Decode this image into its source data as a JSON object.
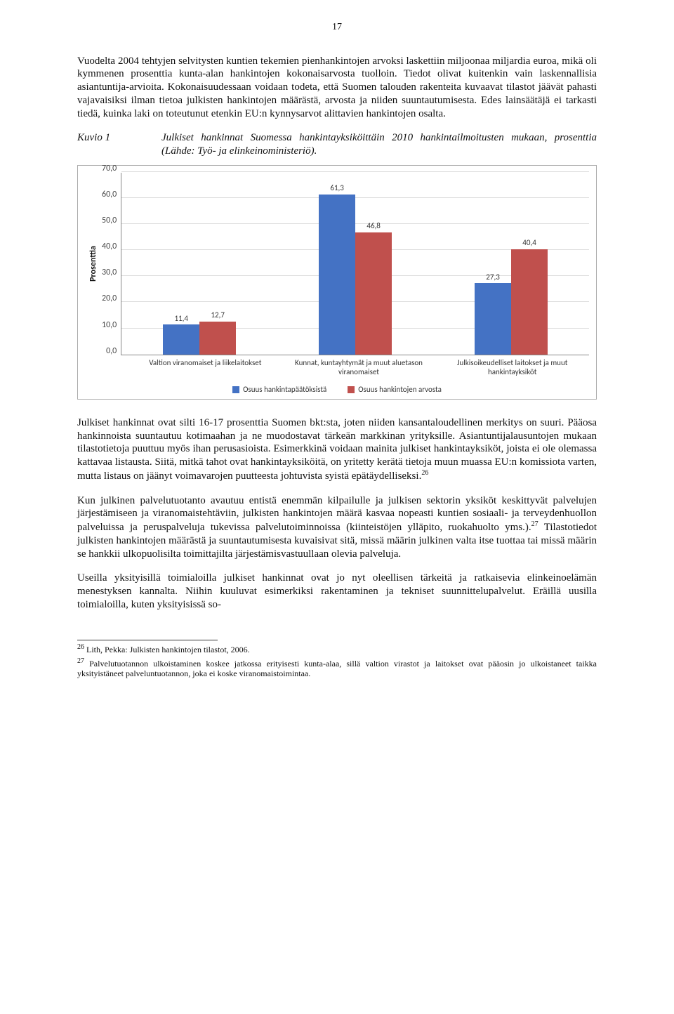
{
  "page_number": "17",
  "para1": "Vuodelta 2004 tehtyjen selvitysten kuntien tekemien pienhankintojen arvoksi laskettiin miljoonaa miljardia euroa, mikä oli kymmenen prosenttia kunta-alan hankintojen kokonaisarvosta tuolloin. Tiedot olivat kuitenkin vain laskennallisia asiantuntija-arvioita. Kokonaisuudessaan voidaan todeta, että Suomen talouden rakenteita kuvaavat tilastot jäävät pahasti vajavaisiksi ilman tietoa julkisten hankintojen määrästä, arvosta ja niiden suuntautumisesta. Edes lainsäätäjä ei tarkasti tiedä, kuinka laki on toteutunut etenkin EU:n kynnysarvot alittavien hankintojen osalta.",
  "kuvio": {
    "label": "Kuvio 1",
    "caption": "Julkiset hankinnat Suomessa hankintayksiköittäin 2010 hankintailmoitusten mukaan, prosenttia (Lähde: Työ- ja elinkeinoministeriö)."
  },
  "chart": {
    "type": "bar",
    "ylabel": "Prosenttia",
    "ymax": 70,
    "ytick_step": 10,
    "yticks": [
      "70,0",
      "60,0",
      "50,0",
      "40,0",
      "30,0",
      "20,0",
      "10,0",
      "0,0"
    ],
    "categories": [
      "Valtion viranomaiset ja liikelaitokset",
      "Kunnat, kuntayhtymät ja muut aluetason viranomaiset",
      "Julkisoikeudelliset laitokset ja muut hankintayksiköt"
    ],
    "series": [
      {
        "name": "Osuus hankintapäätöksistä",
        "color": "#4472c4",
        "values": [
          11.4,
          61.3,
          27.3
        ]
      },
      {
        "name": "Osuus hankintojen arvosta",
        "color": "#c0504d",
        "values": [
          12.7,
          46.8,
          40.4
        ]
      }
    ],
    "value_labels": [
      [
        "11,4",
        "61,3",
        "27,3"
      ],
      [
        "12,7",
        "46,8",
        "40,4"
      ]
    ],
    "grid_color": "#dddddd",
    "background_color": "#ffffff",
    "label_fontsize": 11
  },
  "para2a": "Julkiset hankinnat ovat silti 16-17 prosenttia Suomen bkt:sta, joten niiden kansantaloudellinen merkitys on suuri. Pääosa hankinnoista suuntautuu kotimaahan ja ne muodostavat tärkeän markkinan yrityksille. Asiantuntijalausuntojen mukaan tilastotietoja puuttuu myös ihan perusasioista. Esimerkkinä voidaan mainita julkiset hankintayksiköt, joista ei ole olemassa kattavaa listausta. Siitä, mitkä tahot ovat hankintayksiköitä, on yritetty kerätä tietoja muun muassa EU:n komissiota varten, mutta listaus on jäänyt voimavarojen puutteesta johtuvista syistä epätäydelliseksi.",
  "fn26_mark": "26",
  "para3a": "Kun julkinen palvelutuotanto avautuu entistä enemmän kilpailulle ja julkisen sektorin yksiköt keskittyvät palvelujen järjestämiseen ja viranomaistehtäviin, julkisten hankintojen määrä kasvaa nopeasti kuntien sosiaali- ja terveydenhuollon palveluissa ja peruspalveluja tukevissa palvelutoiminnoissa (kiinteistöjen ylläpito, ruokahuolto yms.).",
  "fn27_mark": "27",
  "para3b": " Tilastotiedot julkisten hankintojen määrästä ja suuntautumisesta kuvaisivat sitä, missä määrin julkinen valta itse tuottaa tai missä määrin se hankkii ulkopuolisilta toimittajilta järjestämisvastuullaan olevia palveluja.",
  "para4": "Useilla yksityisillä toimialoilla julkiset hankinnat ovat jo nyt oleellisen tärkeitä ja ratkaisevia elinkeinoelämän menestyksen kannalta. Niihin kuuluvat esimerkiksi rakentaminen ja tekniset suunnittelupalvelut. Eräillä uusilla toimialoilla, kuten yksityisissä so-",
  "footnotes": {
    "fn26": {
      "mark": "26",
      "text": " Lith, Pekka: Julkisten hankintojen tilastot, 2006."
    },
    "fn27": {
      "mark": "27",
      "text": " Palvelutuotannon ulkoistaminen koskee jatkossa erityisesti kunta-alaa, sillä valtion virastot ja laitokset ovat pääosin jo ulkoistaneet taikka yksityistäneet palveluntuotannon, joka ei koske viranomaistoimintaa."
    }
  }
}
